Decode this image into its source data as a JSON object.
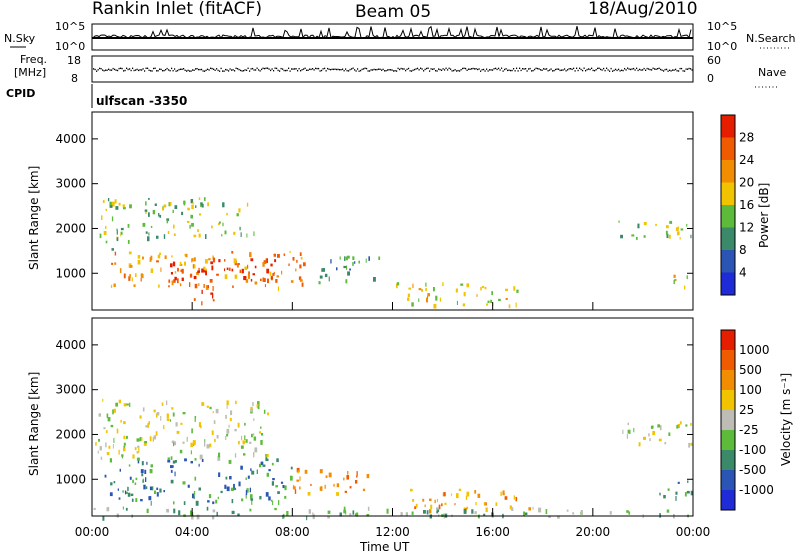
{
  "header": {
    "station": "Rankin Inlet (fitACF)",
    "beam": "Beam 05",
    "date": "18/Aug/2010"
  },
  "top_panels": {
    "nsky_label": "N.Sky",
    "nsky_ticks": [
      "10^5",
      "10^0"
    ],
    "nsearch_label": "N.Search",
    "nsearch_ticks": [
      "10^5",
      "10^0"
    ],
    "freq_label_1": "Freq.",
    "freq_label_2": "[MHz]",
    "freq_ticks": [
      "18",
      "8"
    ],
    "nave_label": "Nave",
    "nave_ticks": [
      "60",
      "0"
    ],
    "cpid_label": "CPID",
    "cpid_value": "ulfscan -3350"
  },
  "chart_data": [
    {
      "type": "heatmap",
      "name": "power-panel",
      "ylabel": "Slant Range [km]",
      "ylim": [
        180,
        4600
      ],
      "yticks": [
        "1000",
        "2000",
        "3000",
        "4000"
      ],
      "xlim_hours": [
        0,
        24
      ],
      "colorbar_label": "Power [dB]",
      "colorbar_ticks": [
        "4",
        "8",
        "12",
        "16",
        "20",
        "24",
        "28"
      ],
      "colors": [
        "#1e2bd6",
        "#2a55b4",
        "#3a8a6a",
        "#5dbb3c",
        "#f2c400",
        "#f28c00",
        "#f05a00",
        "#e61e00"
      ],
      "features": [
        {
          "t0": 0.1,
          "t1": 1.5,
          "r0": 1500,
          "r1": 2700,
          "level": 3
        },
        {
          "t0": 2.0,
          "t1": 6.5,
          "r0": 1800,
          "r1": 2700,
          "level": 3
        },
        {
          "t0": 0.5,
          "t1": 8.5,
          "r0": 700,
          "r1": 1500,
          "level": 5
        },
        {
          "t0": 3.0,
          "t1": 7.5,
          "r0": 850,
          "r1": 1350,
          "level": 7
        },
        {
          "t0": 4.0,
          "t1": 5.0,
          "r0": 250,
          "r1": 800,
          "level": 7
        },
        {
          "t0": 9.0,
          "t1": 11.5,
          "r0": 800,
          "r1": 1400,
          "level": 2
        },
        {
          "t0": 12.0,
          "t1": 17.0,
          "r0": 300,
          "r1": 800,
          "level": 4
        },
        {
          "t0": 21.0,
          "t1": 24.0,
          "r0": 1800,
          "r1": 2200,
          "level": 3
        },
        {
          "t0": 23.0,
          "t1": 24.0,
          "r0": 700,
          "r1": 1000,
          "level": 4
        }
      ]
    },
    {
      "type": "heatmap",
      "name": "velocity-panel",
      "ylabel": "Slant Range [km]",
      "xlabel": "Time UT",
      "ylim": [
        180,
        4600
      ],
      "yticks": [
        "1000",
        "2000",
        "3000",
        "4000"
      ],
      "xlim_hours": [
        0,
        24
      ],
      "xticks": [
        "00:00",
        "04:00",
        "08:00",
        "12:00",
        "16:00",
        "20:00",
        "00:00"
      ],
      "colorbar_label": "Velocity [m s⁻¹]",
      "colorbar_ticks": [
        "1000",
        "500",
        "100",
        "25",
        "-25",
        "-100",
        "-500",
        "-1000"
      ],
      "colors": [
        "#1e2bd6",
        "#2a55b4",
        "#3a8a6a",
        "#5dbb3c",
        "#bdbdb5",
        "#f2c400",
        "#f28c00",
        "#f05a00",
        "#e61e00"
      ],
      "features": [
        {
          "t0": 0.1,
          "t1": 7.0,
          "r0": 1500,
          "r1": 2800,
          "level": 4
        },
        {
          "t0": 0.5,
          "t1": 8.0,
          "r0": 500,
          "r1": 1500,
          "level": 2
        },
        {
          "t0": 8.0,
          "t1": 11.0,
          "r0": 700,
          "r1": 1300,
          "level": 6
        },
        {
          "t0": 12.5,
          "t1": 17.5,
          "r0": 300,
          "r1": 800,
          "level": 6
        },
        {
          "t0": 21.0,
          "t1": 24.0,
          "r0": 1800,
          "r1": 2300,
          "level": 4
        },
        {
          "t0": 22.5,
          "t1": 24.0,
          "r0": 600,
          "r1": 1000,
          "level": 2
        },
        {
          "t0": 0.0,
          "t1": 24.0,
          "r0": 180,
          "r1": 400,
          "level": 3
        }
      ]
    }
  ]
}
